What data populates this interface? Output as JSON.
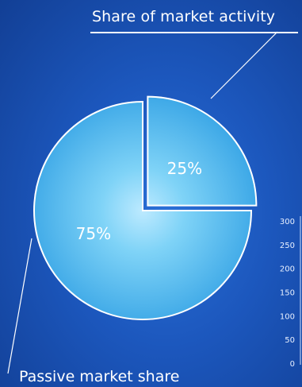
{
  "chart_data": [
    {
      "type": "pie",
      "title": "Share of market activity",
      "slices": [
        {
          "label": "Share of market activity",
          "value": 25,
          "display": "25%",
          "exploded": true
        },
        {
          "label": "Passive market share",
          "value": 75,
          "display": "75%",
          "exploded": false
        }
      ],
      "bottom_label": "Passive market share",
      "colors": {
        "slice_light": "#7fd3f7",
        "slice_dark": "#3aa6e6",
        "background": "#1c57bd"
      }
    },
    {
      "type": "bar",
      "partial": true,
      "y_ticks": [
        "0",
        "50",
        "100",
        "150",
        "200",
        "250",
        "300"
      ],
      "ylim": [
        0,
        300
      ]
    }
  ]
}
